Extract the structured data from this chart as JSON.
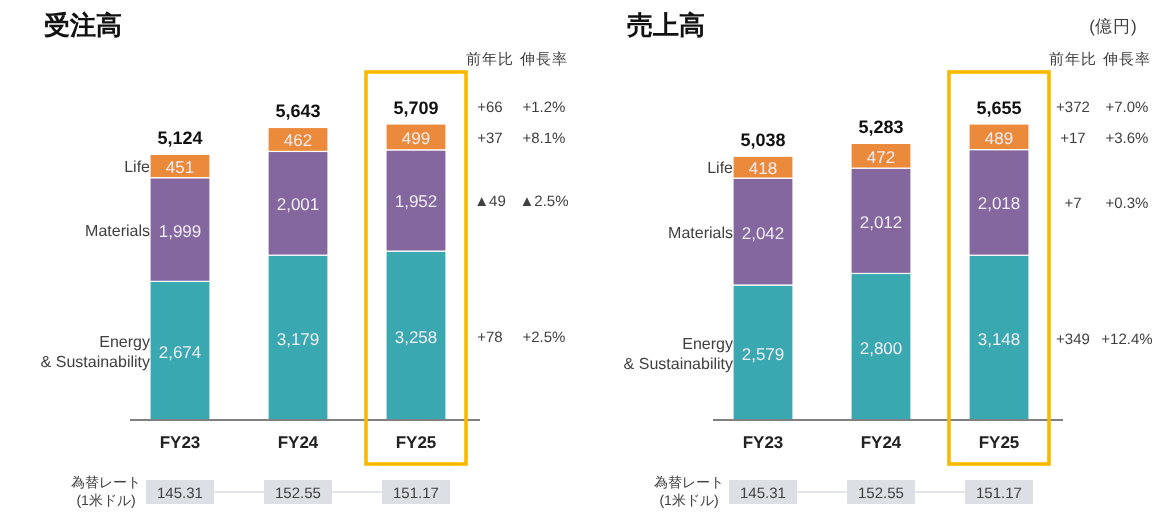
{
  "chart_data": [
    {
      "type": "bar",
      "title": "受注高",
      "stacked": true,
      "categories": [
        "FY23",
        "FY24",
        "FY25"
      ],
      "series": [
        {
          "name": "Energy & Sustainability",
          "color": "#3aa8b1",
          "values": [
            2674,
            3179,
            3258
          ],
          "value_labels": [
            "2,674",
            "3,179",
            "3,258"
          ]
        },
        {
          "name": "Materials",
          "color": "#84679f",
          "values": [
            1999,
            2001,
            1952
          ],
          "value_labels": [
            "1,999",
            "2,001",
            "1,952"
          ]
        },
        {
          "name": "Life",
          "color": "#ec8a3b",
          "values": [
            451,
            462,
            499
          ],
          "value_labels": [
            "451",
            "462",
            "499"
          ]
        }
      ],
      "totals": [
        "5,124",
        "5,643",
        "5,709"
      ],
      "annotations": [
        "前年比",
        "伸長率",
        "+66",
        "+1.2%",
        "+37",
        "+8.1%",
        "▲49",
        "▲2.5%",
        "+78",
        "+2.5%",
        "為替レート (1米ドル)",
        "145.31",
        "152.55",
        "151.17"
      ]
    },
    {
      "type": "bar",
      "title": "売上高",
      "stacked": true,
      "categories": [
        "FY23",
        "FY24",
        "FY25"
      ],
      "series": [
        {
          "name": "Energy & Sustainability",
          "color": "#3aa8b1",
          "values": [
            2579,
            2800,
            3148
          ],
          "value_labels": [
            "2,579",
            "2,800",
            "3,148"
          ]
        },
        {
          "name": "Materials",
          "color": "#84679f",
          "values": [
            2042,
            2012,
            2018
          ],
          "value_labels": [
            "2,042",
            "2,012",
            "2,018"
          ]
        },
        {
          "name": "Life",
          "color": "#ec8a3b",
          "values": [
            418,
            472,
            489
          ],
          "value_labels": [
            "418",
            "472",
            "489"
          ]
        }
      ],
      "totals": [
        "5,038",
        "5,283",
        "5,655"
      ],
      "annotations": [
        "前年比",
        "伸長率",
        "+372",
        "+7.0%",
        "+17",
        "+3.6%",
        "+7",
        "+0.3%",
        "+349",
        "+12.4%",
        "為替レート (1米ドル)",
        "145.31",
        "152.55",
        "151.17",
        "(億円)"
      ]
    }
  ]
}
